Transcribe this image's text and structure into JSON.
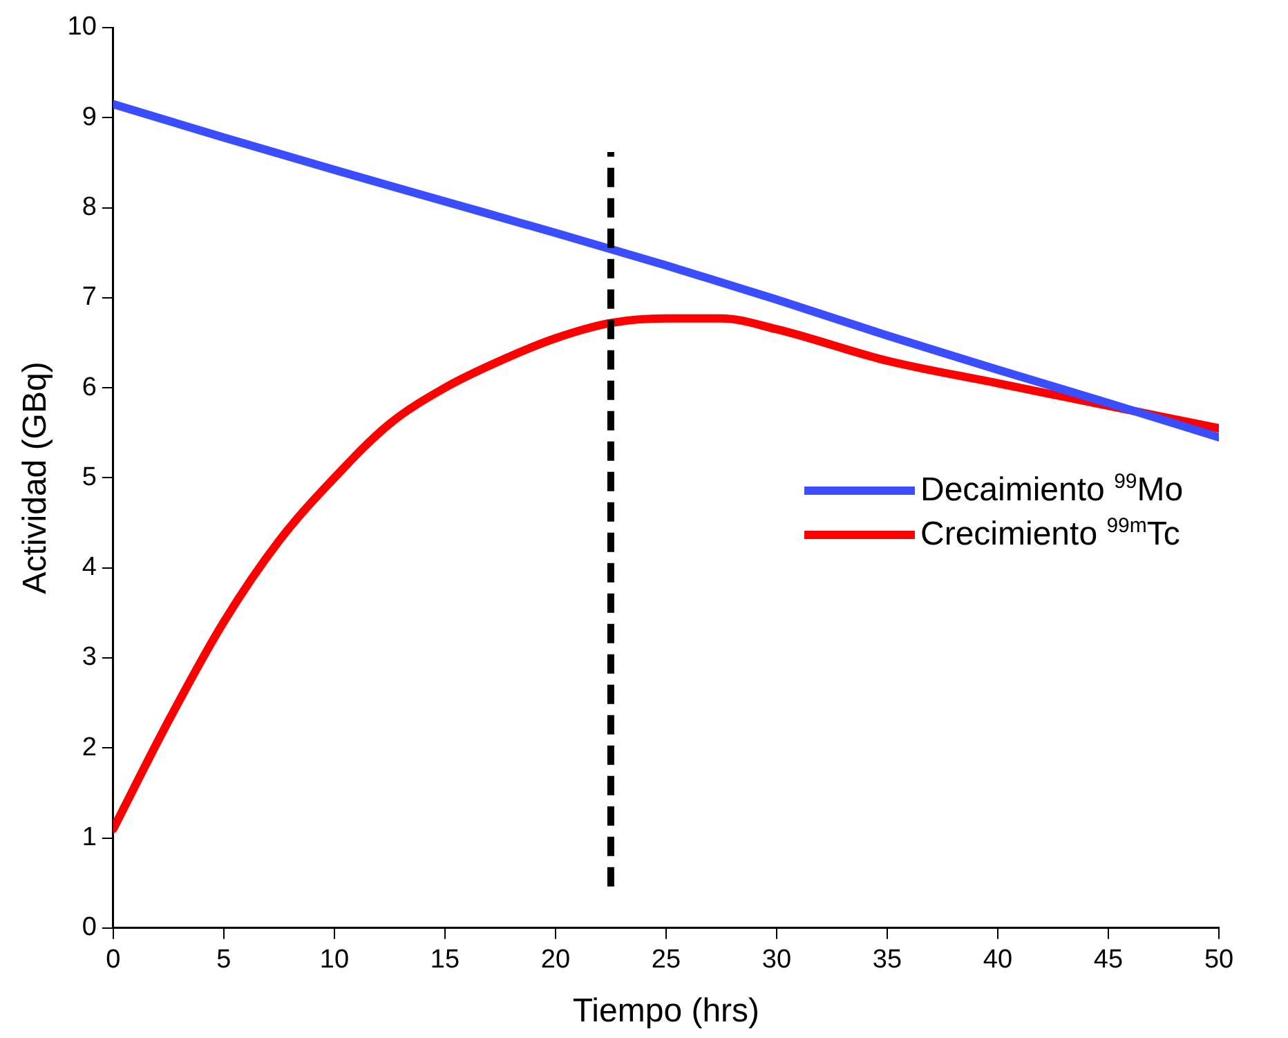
{
  "chart_data": {
    "type": "line",
    "xlabel": "Tiempo (hrs)",
    "ylabel": "Actividad (GBq)",
    "xlim": [
      0,
      50
    ],
    "xticks": [
      0,
      5,
      10,
      15,
      20,
      25,
      30,
      35,
      40,
      45,
      50
    ],
    "ylim": [
      0,
      10
    ],
    "yticks": [
      0,
      1,
      2,
      3,
      4,
      5,
      6,
      7,
      8,
      9,
      10
    ],
    "grid": false,
    "legend": "right",
    "marker": "none",
    "line_style": "solid",
    "series": [
      {
        "name": "Decaimiento $^{99}$Mo",
        "color": "#3a4dff",
        "x": [
          0,
          5,
          10,
          15,
          20,
          25,
          30,
          35,
          40,
          45,
          50
        ],
        "values": [
          9.15,
          8.78,
          8.42,
          8.07,
          7.72,
          7.36,
          6.98,
          6.58,
          6.2,
          5.83,
          5.45
        ]
      },
      {
        "name": "Crecimiento $^{99m}$Tc",
        "color": "#ff0000",
        "x": [
          0,
          2.5,
          5,
          7.5,
          10,
          12.5,
          15,
          17.5,
          20,
          22.5,
          25,
          27.5,
          30,
          35,
          40,
          45,
          50
        ],
        "values": [
          1.1,
          2.3,
          3.4,
          4.3,
          5.0,
          5.6,
          6.0,
          6.3,
          6.55,
          6.72,
          6.77,
          6.77,
          6.65,
          6.3,
          6.05,
          5.8,
          5.55
        ]
      }
    ],
    "ref_lines": [
      {
        "axis": "x",
        "value": 22.5,
        "color": "#000000",
        "line_style": "dashed"
      }
    ]
  }
}
